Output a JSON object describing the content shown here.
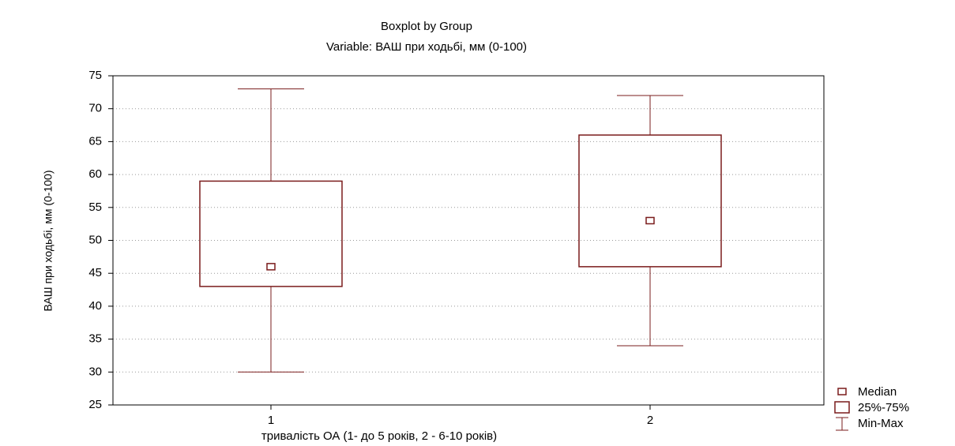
{
  "chart_data": {
    "type": "boxplot",
    "title": "Boxplot by Group",
    "subtitle": "Variable: ВАШ при ходьбі, мм (0-100)",
    "y_label": "ВАШ при ходьбі, мм (0-100)",
    "x_label": "тривалість ОА (1- до 5 років, 2 - 6-10 років)",
    "categories": [
      "1",
      "2"
    ],
    "boxes": [
      {
        "min": 30,
        "q1": 43,
        "median": 46,
        "q3": 59,
        "max": 73
      },
      {
        "min": 34,
        "q1": 46,
        "median": 53,
        "q3": 66,
        "max": 72
      }
    ],
    "color": "#7a1c1c",
    "ylim": [
      25,
      75
    ],
    "yticks": [
      25,
      30,
      35,
      40,
      45,
      50,
      55,
      60,
      65,
      70,
      75
    ],
    "grid": true,
    "legend": {
      "position": "bottom-right",
      "median": "Median",
      "box": "25%-75%",
      "whisker": "Min-Max"
    }
  }
}
